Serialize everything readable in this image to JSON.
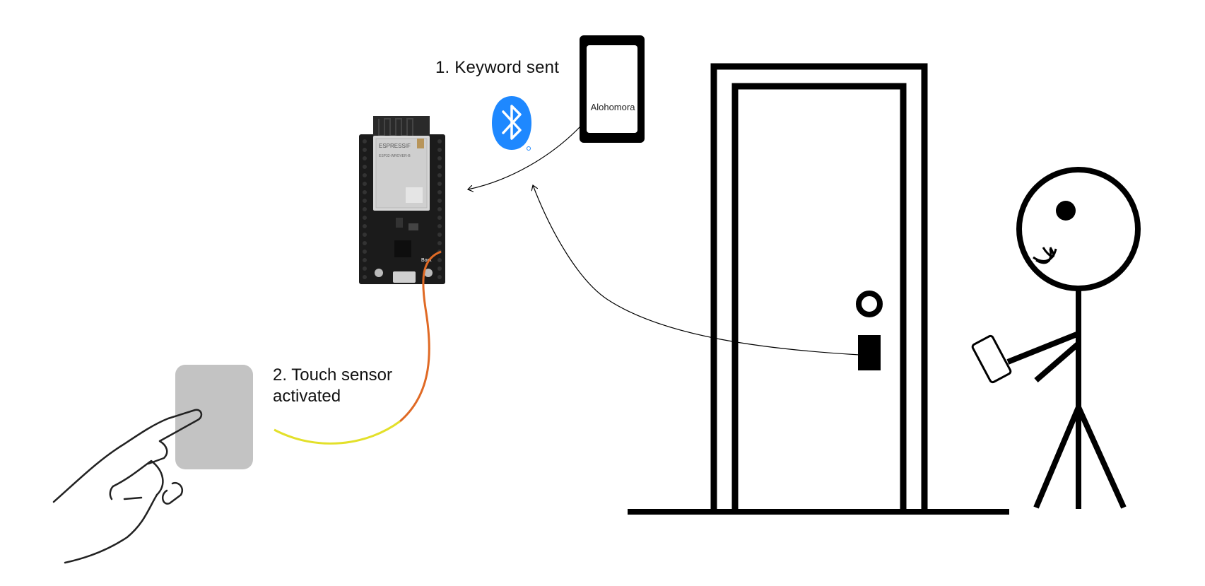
{
  "labels": {
    "step1": "1. Keyword sent",
    "step2_line1": "2. Touch sensor",
    "step2_line2": "activated",
    "phone_keyword": "Alohomora",
    "board_brand": "ESPRESSIF",
    "board_module": "ESP32-WROVER-B",
    "board_button": "Boot"
  },
  "icons": {
    "bluetooth": "bluetooth-icon",
    "phone": "smartphone-icon",
    "hand": "pointing-hand-icon",
    "person": "stick-figure-icon",
    "door": "door-icon",
    "board": "esp32-board-icon"
  },
  "colors": {
    "bluetooth_blue": "#1e88ff",
    "wire_orange": "#e06a25",
    "wire_yellow": "#e3e02a",
    "touch_pad": "#c3c3c3",
    "ink": "#000000"
  }
}
